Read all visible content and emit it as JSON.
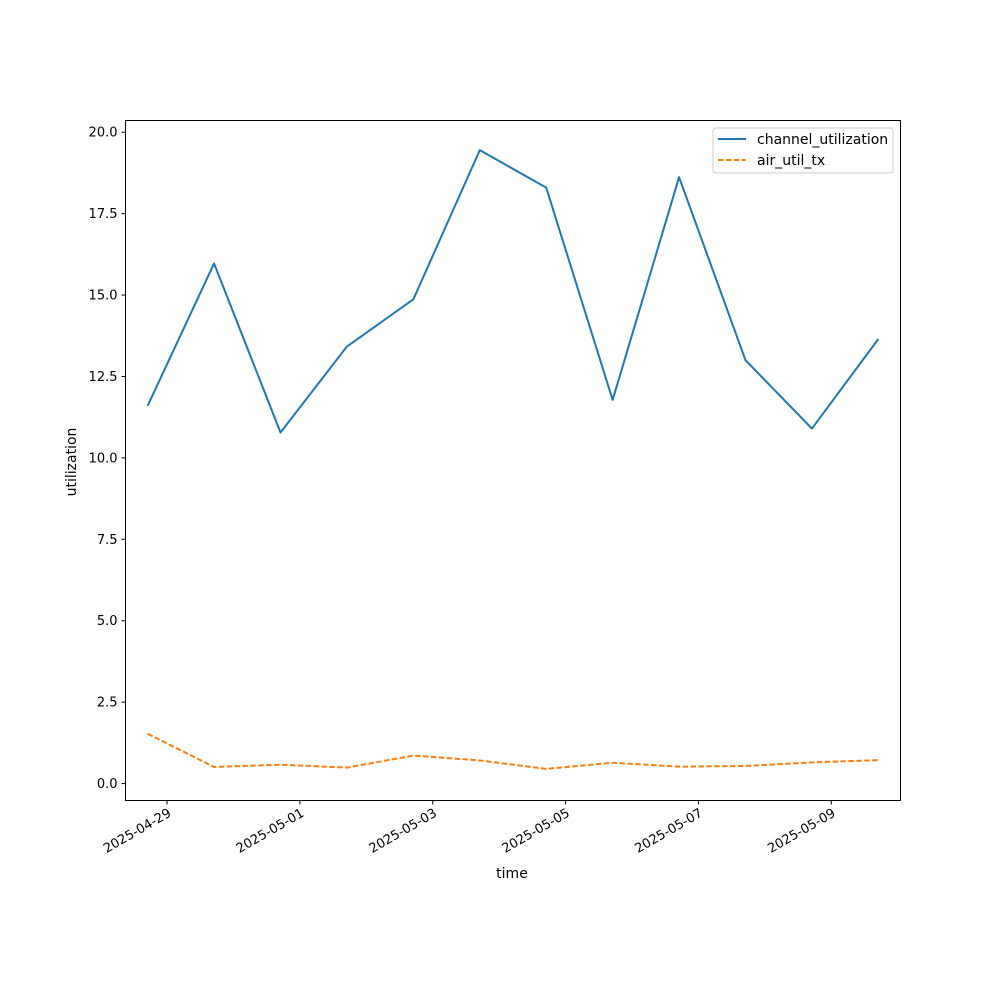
{
  "chart_data": {
    "type": "line",
    "title": "",
    "xlabel": "time",
    "ylabel": "utilization",
    "x": [
      "2025-04-28T17:00",
      "2025-04-29T17:00",
      "2025-04-30T17:00",
      "2025-05-01T17:00",
      "2025-05-02T17:00",
      "2025-05-03T17:00",
      "2025-05-04T17:00",
      "2025-05-05T17:00",
      "2025-05-06T17:00",
      "2025-05-07T17:00",
      "2025-05-08T17:00",
      "2025-05-09T17:00"
    ],
    "xlim": [
      "2025-04-28T09:00",
      "2025-05-10T01:00"
    ],
    "x_ticks": [
      "2025-04-29",
      "2025-05-01",
      "2025-05-03",
      "2025-05-05",
      "2025-05-07",
      "2025-05-09"
    ],
    "ylim": [
      -0.52,
      20.36
    ],
    "y_ticks": [
      0.0,
      2.5,
      5.0,
      7.5,
      10.0,
      12.5,
      15.0,
      17.5,
      20.0
    ],
    "y_tick_labels": [
      "0.0",
      "2.5",
      "5.0",
      "7.5",
      "10.0",
      "12.5",
      "15.0",
      "17.5",
      "20.0"
    ],
    "grid": false,
    "legend_position": "top-right",
    "series": [
      {
        "name": "channel_utilization",
        "color": "#1f77b4",
        "line_style": "solid",
        "values": [
          11.6,
          15.97,
          10.78,
          13.42,
          14.87,
          19.45,
          18.3,
          11.78,
          18.62,
          13.0,
          10.9,
          13.65
        ]
      },
      {
        "name": "air_util_tx",
        "color": "#ff7f0e",
        "line_style": "dashed",
        "values": [
          1.53,
          0.51,
          0.58,
          0.49,
          0.86,
          0.71,
          0.45,
          0.64,
          0.52,
          0.54,
          0.65,
          0.72
        ]
      }
    ]
  }
}
